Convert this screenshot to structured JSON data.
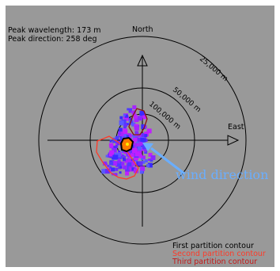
{
  "header": {
    "peak_wavelength": "Peak wavelength: 173 m",
    "peak_direction": "Peak direction: 258 deg"
  },
  "axes": {
    "north": "North",
    "east": "East"
  },
  "rings": {
    "outer": "25,000 m",
    "middle": "50,000 m",
    "inner": "100,000 m"
  },
  "annotation": {
    "wind_direction": "wind direction"
  },
  "legend": {
    "first": "First partition contour",
    "second": "Second partition contour",
    "third": "Third partition contour"
  },
  "colors": {
    "background": "#999999",
    "first_contour": "#000000",
    "second_contour": "#ff3a28",
    "third_contour": "#8a1010",
    "wind_arrow": "#6aaeff",
    "spectrum_low": "#3a2bff",
    "spectrum_high": "#b020ff"
  }
}
